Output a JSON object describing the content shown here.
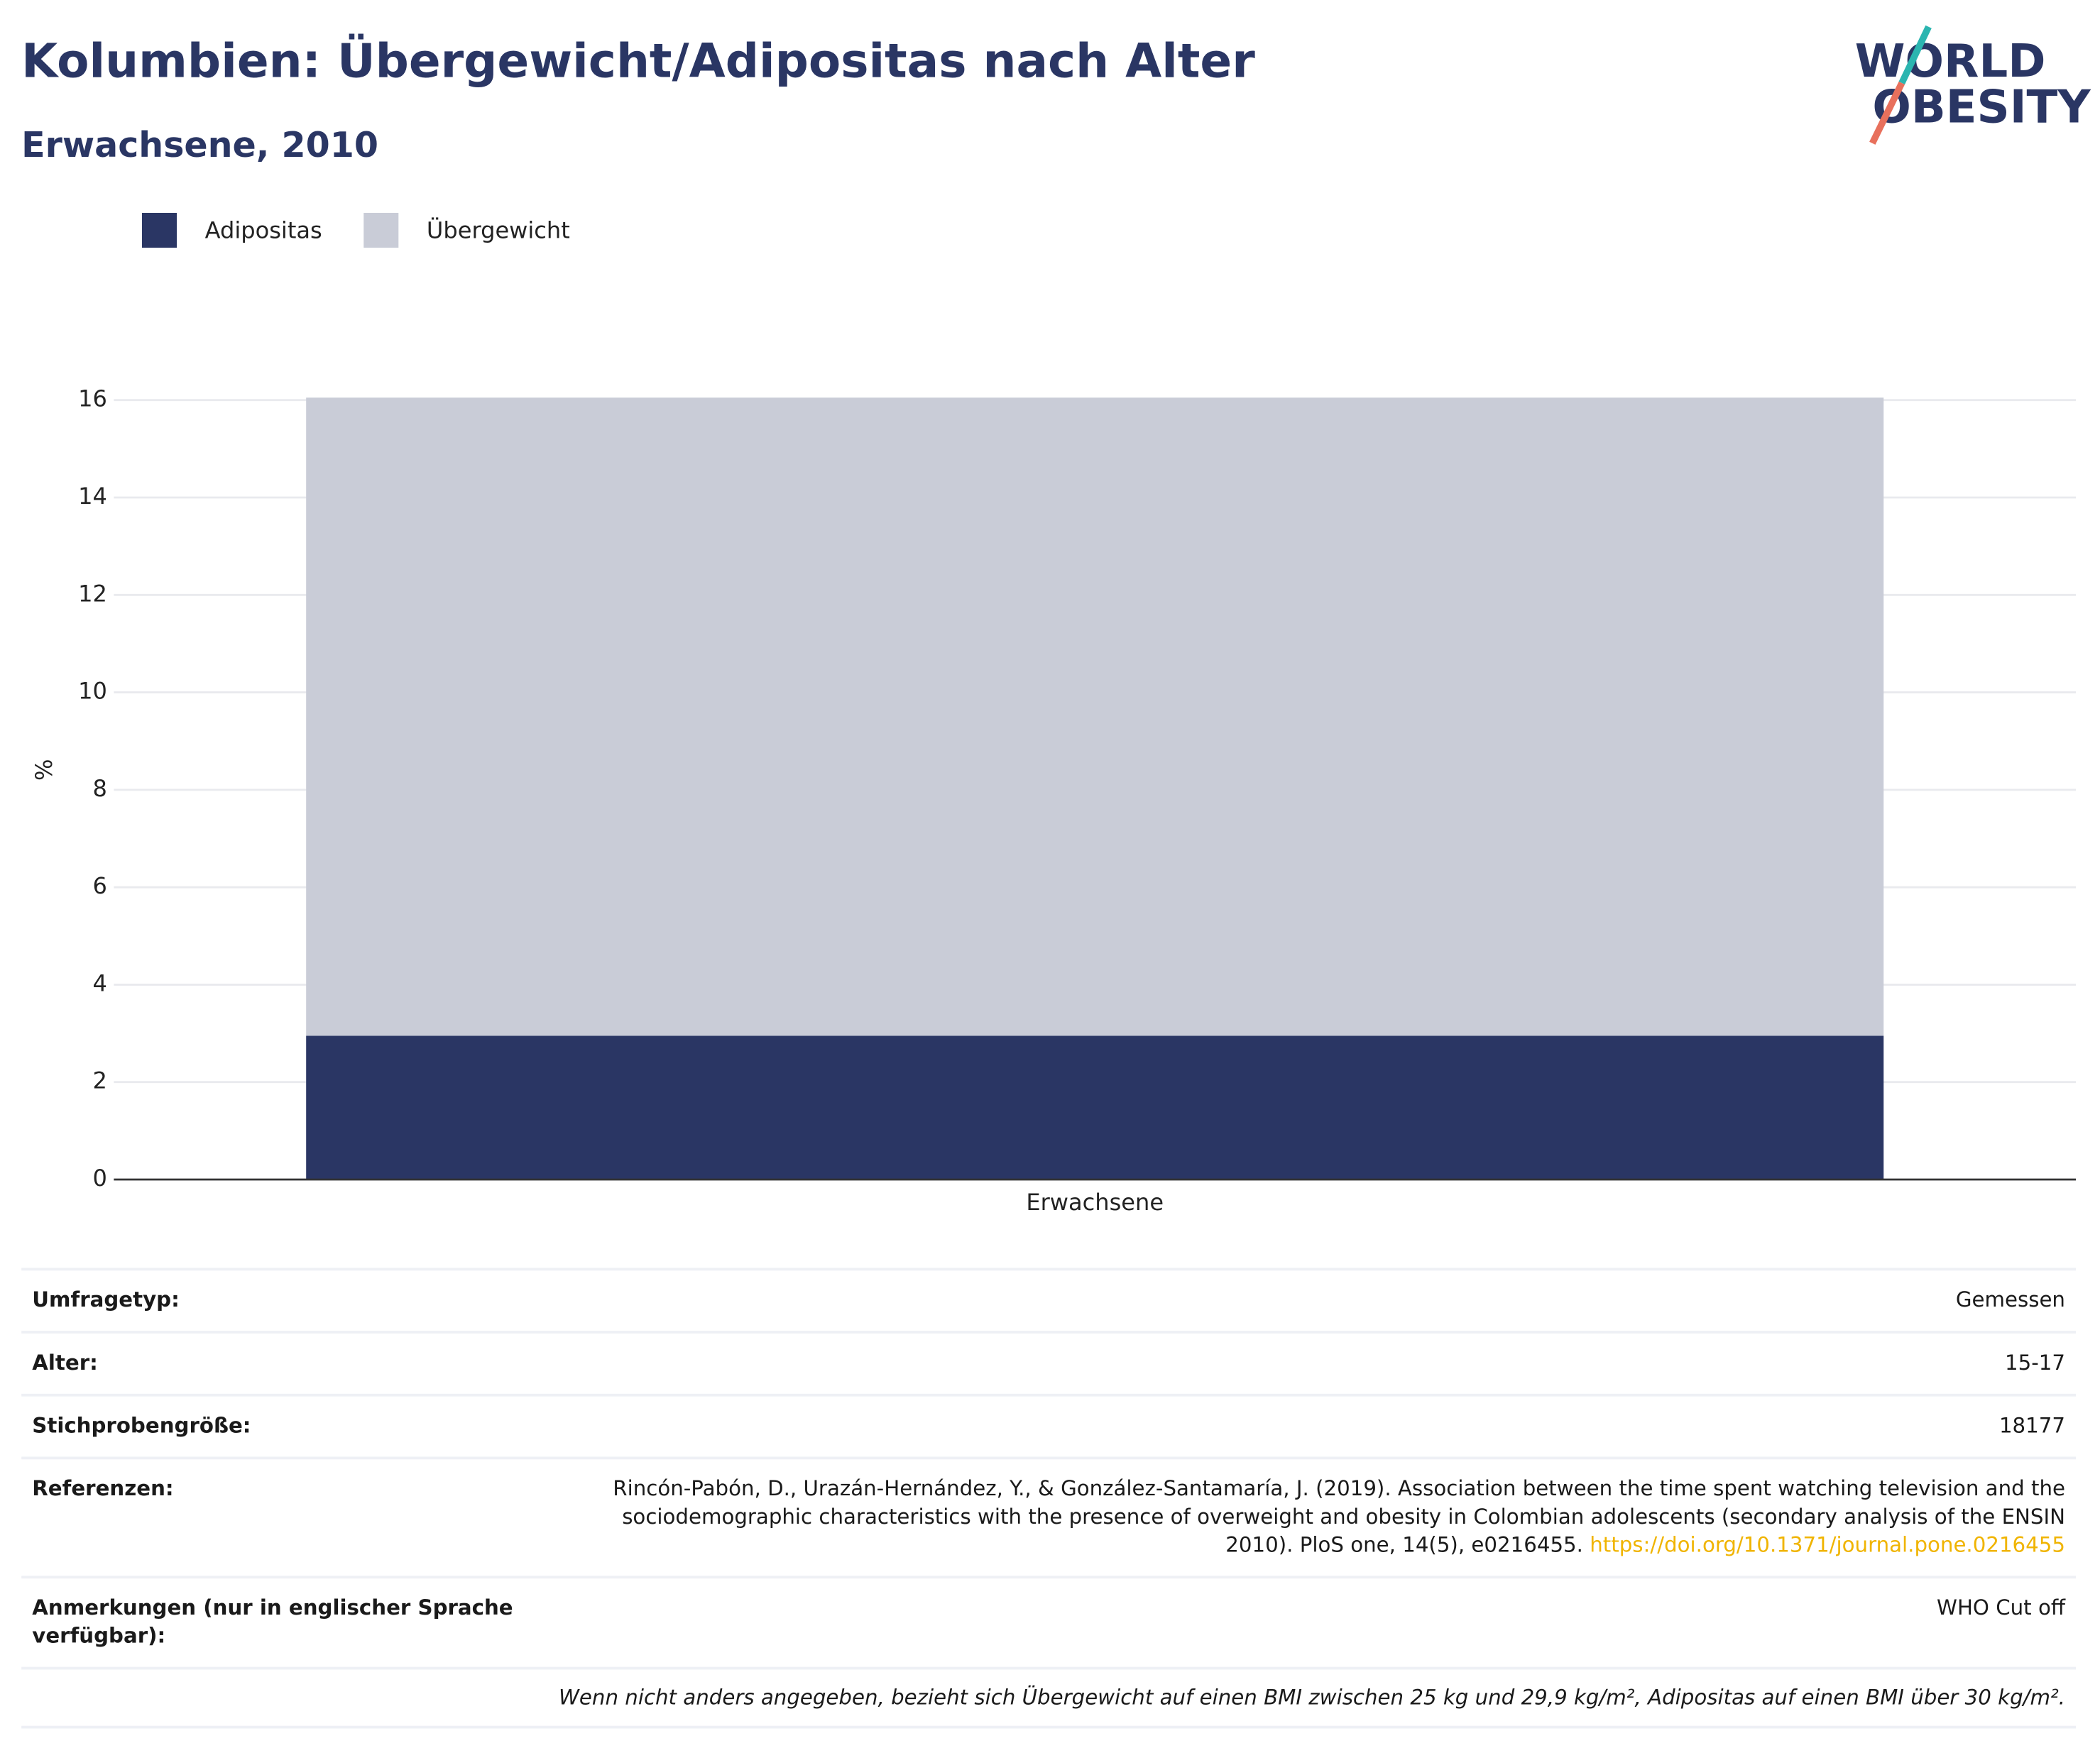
{
  "header": {
    "logo": [
      "WORLD",
      "OBESITY"
    ]
  },
  "chart_data": {
    "type": "bar",
    "stacked": true,
    "title": "Kolumbien: Übergewicht/Adipositas nach Alter",
    "subtitle": "Erwachsene, 2010",
    "categories": [
      "Erwachsene"
    ],
    "series": [
      {
        "name": "Adipositas",
        "color": "#2a3664",
        "values": [
          2.95
        ]
      },
      {
        "name": "Übergewicht",
        "color": "#c9ccd7",
        "values": [
          13.1
        ]
      }
    ],
    "ylabel": "%",
    "ylim": [
      0,
      16.05
    ],
    "yticks": [
      0,
      2,
      4,
      6,
      8,
      10,
      12,
      14,
      16
    ],
    "grid": true,
    "legend": "top-left"
  },
  "table": {
    "rows": [
      {
        "label": "Umfragetyp:",
        "value": "Gemessen"
      },
      {
        "label": "Alter:",
        "value": "15-17"
      },
      {
        "label": "Stichprobengröße:",
        "value": "18177"
      },
      {
        "label": "Referenzen:",
        "value": "Rincón-Pabón, D., Urazán-Hernández, Y., & González-Santamaría, J. (2019). Association between the time spent watching television and the sociodemographic characteristics with the presence of overweight and obesity in Colombian adolescents (secondary analysis of the ENSIN 2010). PloS one, 14(5), e0216455.",
        "link": "https://doi.org/10.1371/journal.pone.0216455"
      },
      {
        "label": "Anmerkungen (nur in englischer Sprache verfügbar):",
        "value": "WHO Cut off"
      }
    ],
    "footnote": "Wenn nicht anders angegeben, bezieht sich Übergewicht auf einen BMI zwischen 25 kg und 29,9 kg/m², Adipositas auf einen BMI über 30 kg/m²."
  }
}
